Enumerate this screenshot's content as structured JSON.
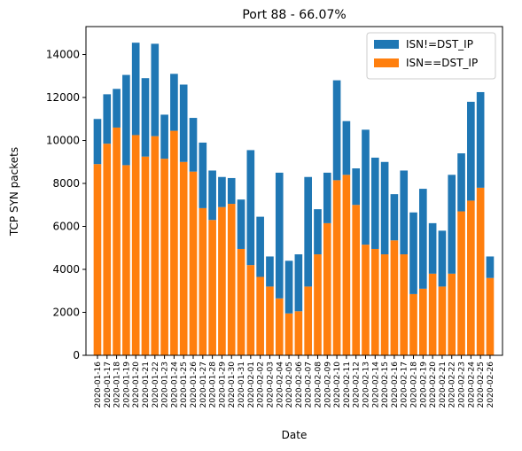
{
  "chart_data": {
    "type": "stacked_bar",
    "title": "Port 88 - 66.07%",
    "x_label": "Date",
    "y_label": "TCP SYN packets",
    "categories": [
      "2020-01-16",
      "2020-01-17",
      "2020-01-18",
      "2020-01-19",
      "2020-01-20",
      "2020-01-21",
      "2020-01-22",
      "2020-01-23",
      "2020-01-24",
      "2020-01-25",
      "2020-01-26",
      "2020-01-27",
      "2020-01-28",
      "2020-01-29",
      "2020-01-30",
      "2020-01-31",
      "2020-02-01",
      "2020-02-02",
      "2020-02-03",
      "2020-02-04",
      "2020-02-05",
      "2020-02-06",
      "2020-02-07",
      "2020-02-08",
      "2020-02-09",
      "2020-02-10",
      "2020-02-11",
      "2020-02-12",
      "2020-02-13",
      "2020-02-14",
      "2020-02-15",
      "2020-02-16",
      "2020-02-17",
      "2020-02-18",
      "2020-02-19",
      "2020-02-20",
      "2020-02-21",
      "2020-02-22",
      "2020-02-23",
      "2020-02-24",
      "2020-02-25",
      "2020-02-26"
    ],
    "series": [
      {
        "name": "ISN==DST_IP",
        "color": "#ff7f0e",
        "values": [
          8900,
          9850,
          10600,
          8850,
          10250,
          9250,
          10200,
          9150,
          10450,
          9000,
          8550,
          6850,
          6300,
          6900,
          7050,
          4950,
          4200,
          3650,
          3200,
          2650,
          1950,
          2050,
          3200,
          4700,
          6150,
          8150,
          8400,
          7000,
          5150,
          4950,
          4700,
          5350,
          4700,
          2850,
          3100,
          3800,
          3200,
          3800,
          6700,
          7200,
          7800,
          3600
        ]
      },
      {
        "name": "ISN!=DST_IP",
        "color": "#1f77b4",
        "values": [
          2100,
          2300,
          1800,
          4200,
          4300,
          3650,
          4300,
          2050,
          2650,
          3600,
          2500,
          3050,
          2300,
          1400,
          1200,
          2300,
          5350,
          2800,
          1400,
          5850,
          2450,
          2650,
          5100,
          2100,
          2350,
          4650,
          2500,
          1700,
          5350,
          4250,
          4300,
          2150,
          3900,
          3800,
          4650,
          2350,
          2600,
          4600,
          2700,
          4600,
          4450,
          1000
        ]
      }
    ],
    "legend_order": [
      1,
      0
    ],
    "ylim": [
      0,
      15300
    ],
    "yticks": [
      0,
      2000,
      4000,
      6000,
      8000,
      10000,
      12000,
      14000
    ],
    "legend": "upper right"
  }
}
